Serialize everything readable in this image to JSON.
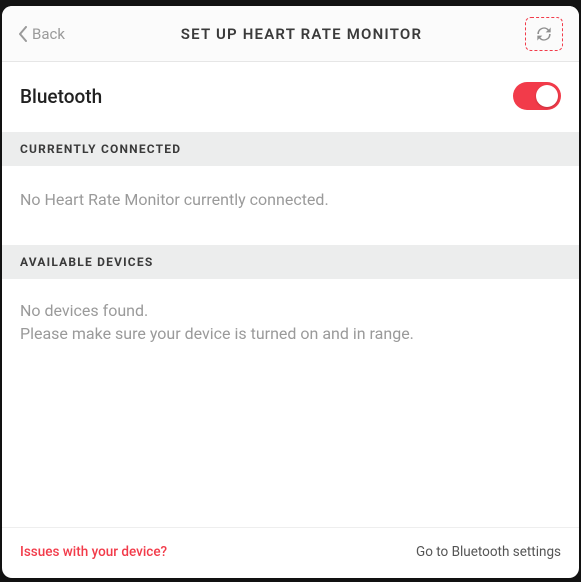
{
  "header": {
    "back_label": "Back",
    "title": "SET UP HEART RATE MONITOR"
  },
  "bluetooth": {
    "label": "Bluetooth",
    "enabled": true,
    "toggle_on_color": "#f23b4a",
    "toggle_off_color": "#cfcfcf"
  },
  "sections": {
    "connected": {
      "header": "CURRENTLY CONNECTED",
      "message": "No Heart Rate Monitor currently connected."
    },
    "available": {
      "header": "AVAILABLE DEVICES",
      "line1": "No devices found.",
      "line2": "Please make sure your device is turned on and in range."
    }
  },
  "footer": {
    "issues": "Issues with your device?",
    "goto": "Go to Bluetooth settings"
  },
  "colors": {
    "accent": "#f23b4a",
    "muted_text": "#9a9a9a",
    "section_bg": "#eceded",
    "border": "#e6e6e6"
  }
}
